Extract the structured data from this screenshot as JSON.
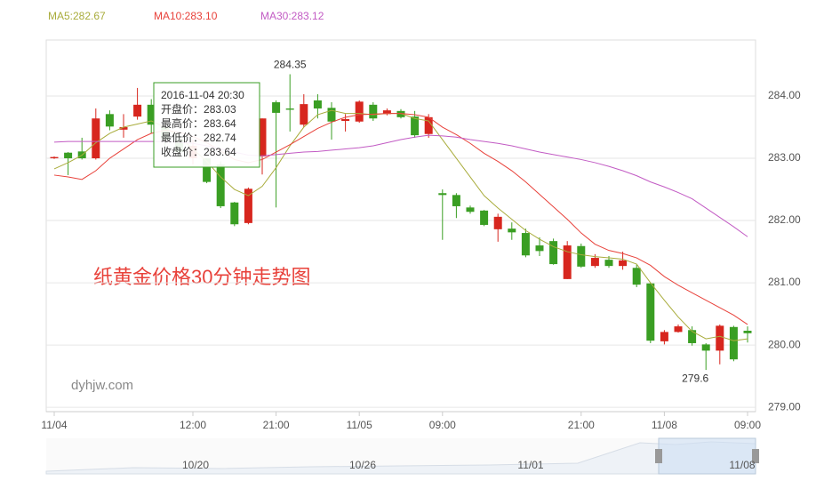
{
  "chart_data": {
    "type": "candlestick",
    "categories": [
      "11/04",
      null,
      null,
      null,
      null,
      null,
      null,
      null,
      null,
      null,
      "12:00",
      null,
      null,
      null,
      null,
      null,
      "21:00",
      null,
      null,
      null,
      null,
      null,
      "11/05",
      null,
      null,
      null,
      null,
      null,
      "09:00",
      null,
      null,
      null,
      null,
      null,
      null,
      null,
      null,
      null,
      "21:00",
      null,
      null,
      null,
      null,
      null,
      "11/08",
      null,
      null,
      null,
      null,
      null,
      "09:00"
    ],
    "open": [
      283.0,
      283.09,
      283.11,
      283.0,
      283.71,
      283.46,
      283.67,
      283.86,
      283.5,
      283.3,
      283.0,
      283.0,
      282.9,
      282.29,
      281.96,
      283.03,
      283.9,
      283.8,
      283.54,
      283.93,
      283.81,
      283.6,
      283.59,
      283.86,
      283.71,
      283.76,
      283.67,
      283.39,
      282.44,
      282.41,
      282.21,
      282.16,
      281.86,
      281.87,
      281.8,
      281.6,
      281.67,
      281.06,
      281.59,
      281.27,
      281.37,
      281.27,
      281.24,
      280.99,
      280.06,
      280.21,
      280.24,
      280.01,
      279.91,
      280.29,
      280.23
    ],
    "high": [
      283.03,
      283.1,
      283.33,
      283.8,
      283.77,
      283.71,
      284.13,
      283.95,
      283.6,
      283.4,
      283.3,
      283.0,
      282.95,
      282.3,
      282.53,
      283.64,
      283.93,
      284.35,
      284.03,
      284.03,
      283.9,
      283.71,
      283.93,
      283.9,
      283.8,
      283.79,
      283.76,
      283.71,
      282.5,
      282.44,
      282.24,
      282.17,
      282.11,
      281.97,
      281.87,
      281.73,
      281.71,
      281.67,
      281.63,
      281.46,
      281.43,
      281.5,
      281.29,
      281.0,
      280.24,
      280.33,
      280.3,
      280.03,
      280.33,
      280.31,
      280.3
    ],
    "low": [
      282.99,
      282.73,
      282.98,
      282.98,
      283.45,
      283.33,
      283.62,
      283.4,
      283.2,
      283.0,
      282.9,
      282.6,
      282.2,
      281.91,
      281.94,
      282.74,
      282.21,
      283.43,
      283.5,
      283.64,
      283.3,
      283.43,
      283.57,
      283.6,
      283.69,
      283.64,
      283.33,
      283.33,
      281.69,
      282.04,
      282.11,
      281.91,
      281.66,
      281.69,
      281.41,
      281.43,
      281.29,
      281.06,
      281.24,
      281.24,
      281.24,
      281.21,
      280.93,
      280.03,
      280.01,
      280.2,
      279.99,
      279.6,
      279.69,
      279.74,
      280.04
    ],
    "close": [
      283.02,
      283.0,
      283.0,
      283.64,
      283.51,
      283.5,
      283.86,
      283.54,
      283.3,
      283.1,
      283.2,
      282.62,
      282.23,
      281.94,
      282.51,
      283.64,
      283.73,
      283.78,
      283.87,
      283.8,
      283.59,
      283.63,
      283.91,
      283.64,
      283.77,
      283.66,
      283.37,
      283.66,
      282.41,
      282.23,
      282.14,
      281.93,
      282.06,
      281.81,
      281.44,
      281.51,
      281.3,
      281.6,
      281.26,
      281.4,
      281.27,
      281.36,
      280.97,
      280.07,
      280.21,
      280.3,
      280.03,
      279.91,
      280.31,
      279.77,
      280.19
    ],
    "up_color": "#d7261e",
    "down_color": "#3a9e23",
    "series": [
      {
        "name": "MA5:282.67",
        "color": "#a9ac3c",
        "values": [
          282.83,
          282.93,
          283.05,
          283.25,
          283.4,
          283.5,
          283.55,
          283.6,
          283.5,
          283.35,
          283.15,
          282.95,
          282.7,
          282.5,
          282.4,
          282.55,
          282.85,
          283.2,
          283.5,
          283.7,
          283.77,
          283.72,
          283.72,
          283.7,
          283.72,
          283.72,
          283.64,
          283.6,
          283.3,
          283.0,
          282.7,
          282.4,
          282.2,
          282.02,
          281.84,
          281.7,
          281.58,
          281.5,
          281.45,
          281.42,
          281.4,
          281.38,
          281.3,
          281.0,
          280.72,
          280.45,
          280.22,
          280.1,
          280.14,
          280.07,
          280.1
        ]
      },
      {
        "name": "MA10:283.10",
        "color": "#e8413a",
        "values": [
          282.73,
          282.7,
          282.66,
          282.8,
          283.0,
          283.15,
          283.3,
          283.4,
          283.45,
          283.42,
          283.35,
          283.25,
          283.12,
          282.98,
          282.93,
          282.98,
          283.1,
          283.22,
          283.35,
          283.48,
          283.58,
          283.66,
          283.7,
          283.71,
          283.72,
          283.72,
          283.7,
          283.66,
          283.5,
          283.38,
          283.24,
          283.08,
          282.95,
          282.8,
          282.62,
          282.42,
          282.22,
          282.02,
          281.8,
          281.62,
          281.52,
          281.47,
          281.4,
          281.28,
          281.1,
          280.96,
          280.84,
          280.72,
          280.6,
          280.48,
          280.33
        ]
      },
      {
        "name": "MA30:283.12",
        "color": "#c25bc4",
        "values": [
          283.26,
          283.27,
          283.27,
          283.27,
          283.27,
          283.27,
          283.27,
          283.27,
          283.27,
          283.26,
          283.24,
          283.2,
          283.15,
          283.1,
          283.05,
          283.04,
          283.06,
          283.08,
          283.1,
          283.11,
          283.13,
          283.15,
          283.17,
          283.2,
          283.25,
          283.3,
          283.34,
          283.37,
          283.36,
          283.34,
          283.3,
          283.27,
          283.24,
          283.2,
          283.15,
          283.1,
          283.06,
          283.02,
          282.98,
          282.93,
          282.87,
          282.8,
          282.72,
          282.62,
          282.54,
          282.45,
          282.35,
          282.2,
          282.05,
          281.9,
          281.74
        ]
      }
    ],
    "ylim": [
      278.93,
      284.9
    ],
    "yticks": [
      {
        "value": 279,
        "label": "279.00"
      },
      {
        "value": 280,
        "label": "280.00"
      },
      {
        "value": 281,
        "label": "281.00"
      },
      {
        "value": 282,
        "label": "282.00"
      },
      {
        "value": 283,
        "label": "283.00"
      },
      {
        "value": 284,
        "label": "284.00"
      }
    ],
    "grid": true,
    "max_label": "284.35",
    "min_label": "279.6",
    "watermark": "纸黄金价格30分钟走势图",
    "site": "dyhjw.com",
    "tooltip": {
      "title": "2016-11-04 20:30",
      "labels": [
        "开盘价：",
        "最高价：",
        "最低价：",
        "收盘价："
      ]
    }
  },
  "navigator": {
    "labels": [
      "10/20",
      "10/26",
      "11/01",
      "11/08"
    ]
  }
}
